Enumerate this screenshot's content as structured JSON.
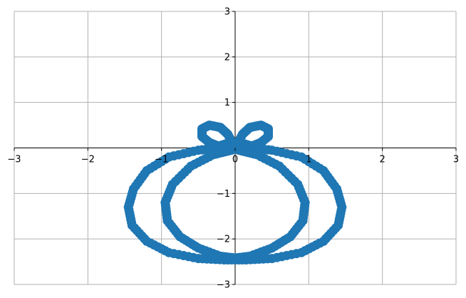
{
  "chart_data": {
    "type": "scatter",
    "title": "",
    "xlabel": "",
    "ylabel": "",
    "xlim": [
      -3,
      3
    ],
    "ylim": [
      -3,
      3
    ],
    "grid": true,
    "spines": "centered at origin",
    "xticks": [
      -3,
      -2,
      -1,
      0,
      1,
      2,
      3
    ],
    "yticks": [
      -3,
      -2,
      -1,
      0,
      1,
      2,
      3
    ],
    "xtick_labels": [
      "−3",
      "−2",
      "−1",
      "0",
      "1",
      "2",
      "3"
    ],
    "ytick_labels": [
      "−3",
      "−2",
      "−1",
      "1",
      "2",
      "3"
    ],
    "series": [
      {
        "marker": "circle",
        "color": "#1f77b4",
        "points": [
          [
            0.0,
            0.0
          ],
          [
            0.1,
            0.3
          ],
          [
            0.2,
            0.45
          ],
          [
            0.35,
            0.5
          ],
          [
            0.45,
            0.42
          ],
          [
            0.45,
            0.25
          ],
          [
            0.35,
            0.12
          ],
          [
            0.2,
            0.02
          ],
          [
            0.1,
            -0.02
          ],
          [
            0.2,
            0.0
          ],
          [
            0.5,
            -0.05
          ],
          [
            0.9,
            -0.2
          ],
          [
            1.2,
            -0.5
          ],
          [
            1.38,
            -0.9
          ],
          [
            1.45,
            -1.3
          ],
          [
            1.4,
            -1.7
          ],
          [
            1.2,
            -2.05
          ],
          [
            0.9,
            -2.3
          ],
          [
            0.5,
            -2.43
          ],
          [
            0.15,
            -2.46
          ],
          [
            -0.15,
            -2.46
          ],
          [
            -0.5,
            -2.43
          ],
          [
            -0.9,
            -2.3
          ],
          [
            -1.2,
            -2.05
          ],
          [
            -1.4,
            -1.7
          ],
          [
            -1.45,
            -1.3
          ],
          [
            -1.38,
            -0.9
          ],
          [
            -1.2,
            -0.5
          ],
          [
            -0.9,
            -0.2
          ],
          [
            -0.5,
            -0.05
          ],
          [
            -0.2,
            0.0
          ],
          [
            -0.1,
            -0.02
          ],
          [
            -0.2,
            0.02
          ],
          [
            -0.35,
            0.12
          ],
          [
            -0.45,
            0.25
          ],
          [
            -0.45,
            0.42
          ],
          [
            -0.35,
            0.5
          ],
          [
            -0.2,
            0.45
          ],
          [
            -0.1,
            0.3
          ],
          [
            0.0,
            0.0
          ],
          [
            -0.05,
            -0.05
          ],
          [
            -0.3,
            -0.15
          ],
          [
            -0.6,
            -0.4
          ],
          [
            -0.85,
            -0.8
          ],
          [
            -0.95,
            -1.2
          ],
          [
            -0.92,
            -1.6
          ],
          [
            -0.75,
            -1.95
          ],
          [
            -0.5,
            -2.2
          ],
          [
            -0.2,
            -2.38
          ],
          [
            0.0,
            -2.42
          ],
          [
            0.2,
            -2.38
          ],
          [
            0.5,
            -2.2
          ],
          [
            0.75,
            -1.95
          ],
          [
            0.92,
            -1.6
          ],
          [
            0.95,
            -1.2
          ],
          [
            0.85,
            -0.8
          ],
          [
            0.6,
            -0.4
          ],
          [
            0.3,
            -0.15
          ],
          [
            0.05,
            -0.05
          ],
          [
            0.15,
            0.0
          ],
          [
            0.2,
            0.05
          ],
          [
            0.1,
            0.1
          ],
          [
            -0.1,
            0.1
          ],
          [
            -0.2,
            0.05
          ],
          [
            -0.15,
            0.0
          ]
        ]
      }
    ]
  }
}
